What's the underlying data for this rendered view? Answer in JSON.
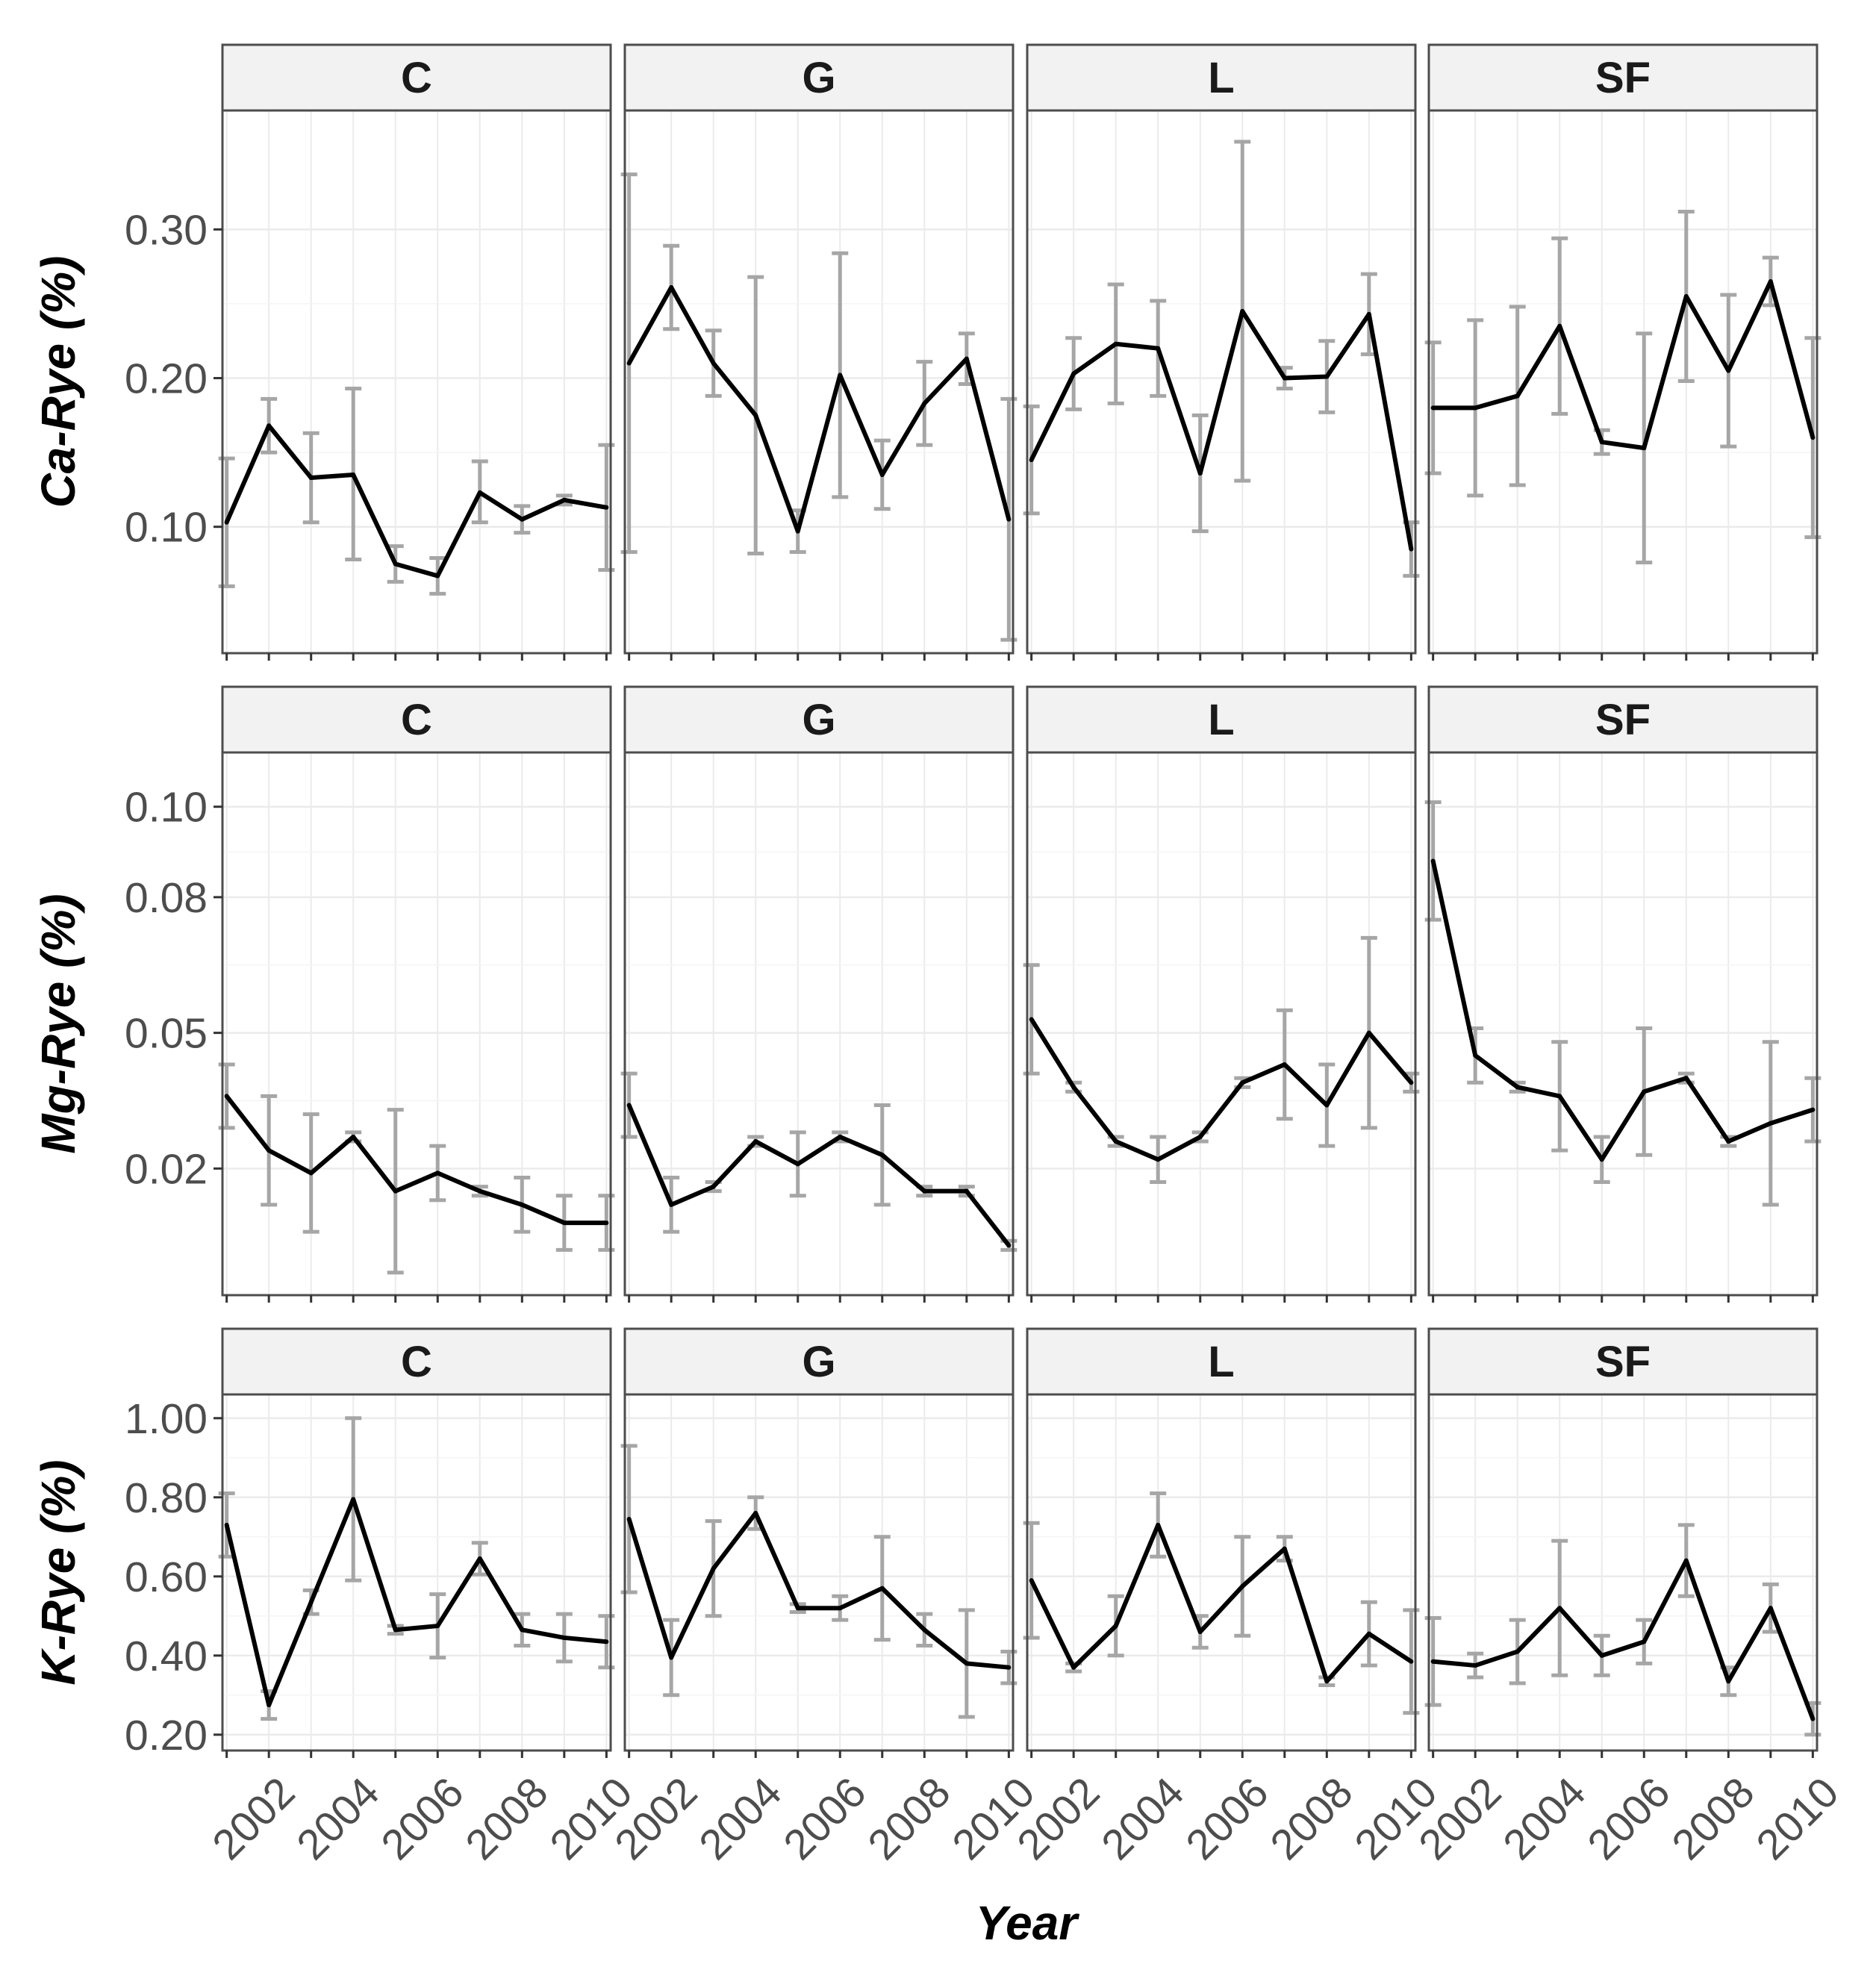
{
  "chart_data": {
    "type": "line",
    "x_title": "Year",
    "facets": [
      "C",
      "G",
      "L",
      "SF"
    ],
    "x_tick_labels": [
      "2002",
      "2004",
      "2006",
      "2008",
      "2010"
    ],
    "x": [
      2001,
      2002,
      2003,
      2004,
      2005,
      2006,
      2007,
      2008,
      2009,
      2010
    ],
    "xlim": [
      2000.9,
      2010.1
    ],
    "grid": true,
    "legend": "none",
    "colors": {
      "line": "#000000",
      "errorbar": "#a6a6a6",
      "panel_border": "#4d4d4d",
      "strip_fill": "#f2f2f2",
      "grid": "#ebebeb"
    },
    "rows": [
      {
        "y_title": "Ca-Rye (%)",
        "ylim": [
          0.015,
          0.38
        ],
        "y_ticks": [
          0.1,
          0.2,
          0.3
        ],
        "y_tick_labels": [
          "0.10",
          "0.20",
          "0.30"
        ],
        "panels": [
          {
            "facet": "C",
            "values": [
              0.103,
              0.168,
              0.133,
              0.135,
              0.075,
              0.067,
              0.123,
              0.105,
              0.118,
              0.113
            ],
            "lower": [
              0.06,
              0.15,
              0.103,
              0.078,
              0.063,
              0.055,
              0.103,
              0.096,
              0.115,
              0.071
            ],
            "upper": [
              0.146,
              0.186,
              0.163,
              0.193,
              0.087,
              0.079,
              0.144,
              0.114,
              0.121,
              0.155
            ]
          },
          {
            "facet": "G",
            "values": [
              0.21,
              0.261,
              0.21,
              0.175,
              0.097,
              0.202,
              0.135,
              0.183,
              0.213,
              0.105
            ],
            "lower": [
              0.083,
              0.233,
              0.188,
              0.082,
              0.083,
              0.12,
              0.112,
              0.155,
              0.196,
              0.024
            ],
            "upper": [
              0.337,
              0.289,
              0.232,
              0.268,
              0.111,
              0.284,
              0.158,
              0.211,
              0.23,
              0.186
            ]
          },
          {
            "facet": "L",
            "values": [
              0.145,
              0.203,
              0.223,
              0.22,
              0.136,
              0.245,
              0.2,
              0.201,
              0.243,
              0.085
            ],
            "lower": [
              0.109,
              0.179,
              0.183,
              0.188,
              0.097,
              0.131,
              0.193,
              0.177,
              0.216,
              0.067
            ],
            "upper": [
              0.181,
              0.227,
              0.263,
              0.252,
              0.175,
              0.359,
              0.207,
              0.225,
              0.27,
              0.103
            ]
          },
          {
            "facet": "SF",
            "values": [
              0.18,
              0.18,
              0.188,
              0.235,
              0.157,
              0.153,
              0.255,
              0.205,
              0.265,
              0.16
            ],
            "lower": [
              0.136,
              0.121,
              0.128,
              0.176,
              0.149,
              0.076,
              0.198,
              0.154,
              0.249,
              0.093
            ],
            "upper": [
              0.224,
              0.239,
              0.248,
              0.294,
              0.165,
              0.23,
              0.312,
              0.256,
              0.281,
              0.227
            ]
          }
        ]
      },
      {
        "y_title": "Mg-Rye (%)",
        "ylim": [
          -0.008,
          0.112
        ],
        "y_ticks": [
          0.02,
          0.05,
          0.08,
          0.1
        ],
        "y_tick_labels": [
          "0.02",
          "0.05",
          "0.08",
          "0.10"
        ],
        "panels": [
          {
            "facet": "C",
            "values": [
              0.036,
              0.024,
              0.019,
              0.027,
              0.015,
              0.019,
              0.015,
              0.012,
              0.008,
              0.008
            ],
            "lower": [
              0.029,
              0.012,
              0.006,
              0.026,
              -0.003,
              0.013,
              0.014,
              0.006,
              0.002,
              0.002
            ],
            "upper": [
              0.043,
              0.036,
              0.032,
              0.028,
              0.033,
              0.025,
              0.016,
              0.018,
              0.014,
              0.014
            ]
          },
          {
            "facet": "G",
            "values": [
              0.034,
              0.012,
              0.016,
              0.026,
              0.021,
              0.027,
              0.023,
              0.015,
              0.015,
              0.003
            ],
            "lower": [
              0.027,
              0.006,
              0.015,
              0.025,
              0.014,
              0.026,
              0.012,
              0.014,
              0.014,
              0.002
            ],
            "upper": [
              0.041,
              0.018,
              0.017,
              0.027,
              0.028,
              0.028,
              0.034,
              0.016,
              0.016,
              0.004
            ]
          },
          {
            "facet": "L",
            "values": [
              0.053,
              0.038,
              0.026,
              0.022,
              0.027,
              0.039,
              0.043,
              0.034,
              0.05,
              0.039
            ],
            "lower": [
              0.041,
              0.037,
              0.025,
              0.017,
              0.026,
              0.038,
              0.031,
              0.025,
              0.029,
              0.037
            ],
            "upper": [
              0.065,
              0.039,
              0.027,
              0.027,
              0.028,
              0.04,
              0.055,
              0.043,
              0.071,
              0.041
            ]
          },
          {
            "facet": "SF",
            "values": [
              0.088,
              0.045,
              0.038,
              0.036,
              0.022,
              0.037,
              0.04,
              0.026,
              0.03,
              0.033
            ],
            "lower": [
              0.075,
              0.039,
              0.037,
              0.024,
              0.017,
              0.023,
              0.039,
              0.025,
              0.012,
              0.026
            ],
            "upper": [
              0.101,
              0.051,
              0.039,
              0.048,
              0.027,
              0.051,
              0.041,
              0.027,
              0.048,
              0.04
            ]
          }
        ]
      },
      {
        "y_title": "K-Rye (%)",
        "ylim": [
          0.16,
          1.06
        ],
        "y_ticks": [
          0.2,
          0.4,
          0.6,
          0.8,
          1.0
        ],
        "y_tick_labels": [
          "0.20",
          "0.40",
          "0.60",
          "0.80",
          "1.00"
        ],
        "panels": [
          {
            "facet": "C",
            "values": [
              0.73,
              0.275,
              0.535,
              0.795,
              0.465,
              0.475,
              0.645,
              0.465,
              0.445,
              0.435
            ],
            "lower": [
              0.65,
              0.24,
              0.505,
              0.59,
              0.455,
              0.395,
              0.605,
              0.425,
              0.385,
              0.37
            ],
            "upper": [
              0.81,
              0.31,
              0.565,
              1.0,
              0.475,
              0.555,
              0.685,
              0.505,
              0.505,
              0.5
            ]
          },
          {
            "facet": "G",
            "values": [
              0.745,
              0.395,
              0.62,
              0.76,
              0.52,
              0.52,
              0.57,
              0.465,
              0.38,
              0.37
            ],
            "lower": [
              0.56,
              0.3,
              0.5,
              0.72,
              0.51,
              0.49,
              0.44,
              0.425,
              0.245,
              0.33
            ],
            "upper": [
              0.93,
              0.49,
              0.74,
              0.8,
              0.53,
              0.55,
              0.7,
              0.505,
              0.515,
              0.41
            ]
          },
          {
            "facet": "L",
            "values": [
              0.59,
              0.37,
              0.475,
              0.73,
              0.46,
              0.575,
              0.67,
              0.335,
              0.455,
              0.385
            ],
            "lower": [
              0.445,
              0.36,
              0.4,
              0.65,
              0.42,
              0.45,
              0.64,
              0.325,
              0.375,
              0.255
            ],
            "upper": [
              0.735,
              0.38,
              0.55,
              0.81,
              0.5,
              0.7,
              0.7,
              0.345,
              0.535,
              0.515
            ]
          },
          {
            "facet": "SF",
            "values": [
              0.385,
              0.375,
              0.41,
              0.52,
              0.4,
              0.435,
              0.64,
              0.335,
              0.52,
              0.24
            ],
            "lower": [
              0.275,
              0.345,
              0.33,
              0.35,
              0.35,
              0.38,
              0.55,
              0.3,
              0.46,
              0.2
            ],
            "upper": [
              0.495,
              0.405,
              0.49,
              0.69,
              0.45,
              0.49,
              0.73,
              0.37,
              0.58,
              0.28
            ]
          }
        ]
      }
    ]
  }
}
